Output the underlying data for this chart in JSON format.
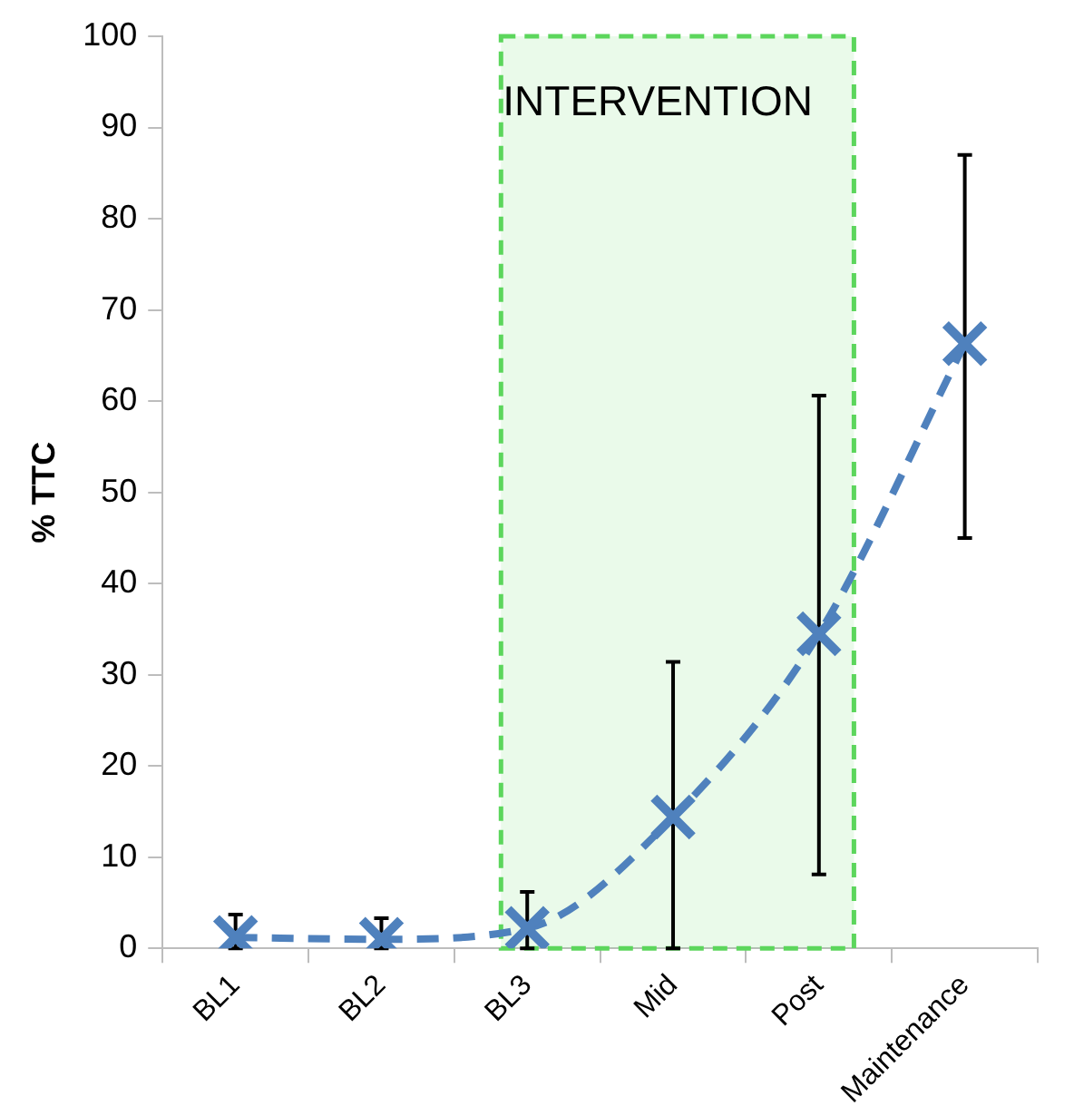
{
  "chart_data": {
    "type": "line",
    "ylabel": "% TTC",
    "categories": [
      "BL1",
      "BL2",
      "BL3",
      "Mid",
      "Post",
      "Maintenance"
    ],
    "series": [
      {
        "color": "#4f81bd",
        "values": [
          1.2,
          1.0,
          2.2,
          14.4,
          34.5,
          66.3
        ],
        "errors": [
          [
            0,
            3.7
          ],
          [
            0,
            3.3
          ],
          [
            0,
            6.2
          ],
          [
            0,
            31.4
          ],
          [
            8.1,
            60.6
          ],
          [
            45,
            87
          ]
        ]
      }
    ],
    "ylim": [
      0,
      100
    ],
    "yticks": [
      0,
      10,
      20,
      30,
      40,
      50,
      60,
      70,
      80,
      90,
      100
    ],
    "bands": [
      {
        "axis": "x",
        "from": "BL3",
        "to": "Post",
        "label": "INTERVENTION",
        "color": "#5cd65c"
      }
    ],
    "grid": false,
    "legend": false,
    "marker": "cross",
    "line_style": "dashed"
  }
}
